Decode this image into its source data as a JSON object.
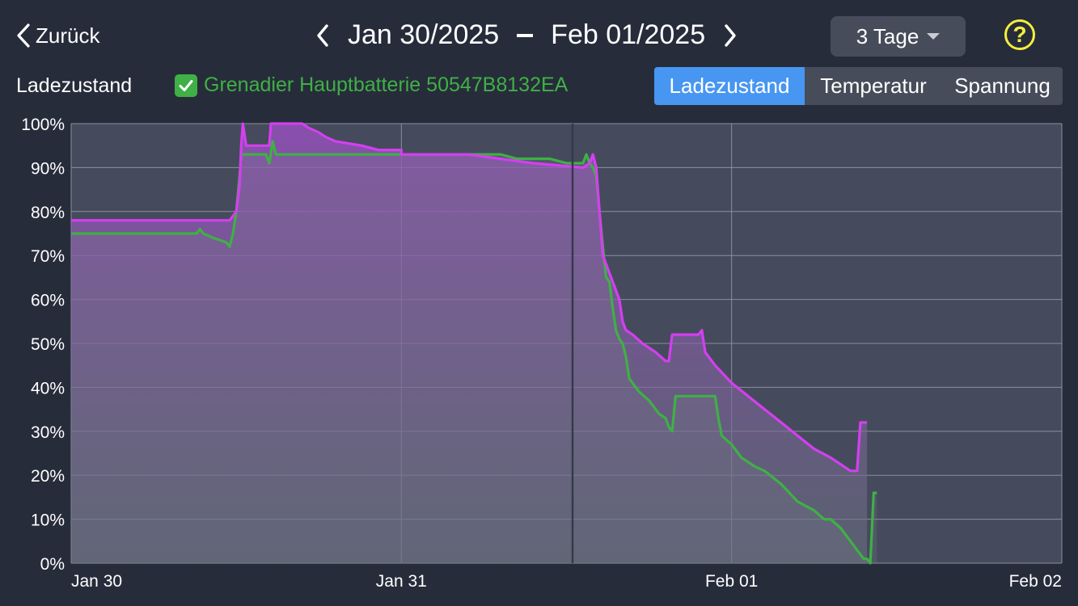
{
  "header": {
    "back_label": "Zurück",
    "date_from": "Jan 30/2025",
    "date_to": "Feb 01/2025",
    "range_label": "3 Tage",
    "help_label": "?"
  },
  "legend": {
    "section_label": "Ladezustand",
    "device_label": "Grenadier Hauptbatterie 50547B8132EA",
    "device_checked": true
  },
  "tabs": [
    {
      "label": "Ladezustand",
      "active": true
    },
    {
      "label": "Temperatur",
      "active": false
    },
    {
      "label": "Spannung",
      "active": false
    }
  ],
  "colors": {
    "background": "#272c3b",
    "magenta": "#d43ff0",
    "green": "#3fb045",
    "accent": "#4796f1",
    "help": "#f4ee3c"
  },
  "chart_data": {
    "type": "line",
    "x_unit": "days from Jan 30 00:00",
    "xlim": [
      0,
      3
    ],
    "ylim": [
      0,
      100
    ],
    "x_ticks": [
      {
        "x": 0,
        "label": "Jan 30"
      },
      {
        "x": 1,
        "label": "Jan 31"
      },
      {
        "x": 2,
        "label": "Feb 01"
      },
      {
        "x": 3,
        "label": "Feb 02"
      }
    ],
    "y_ticks": [
      0,
      10,
      20,
      30,
      40,
      50,
      60,
      70,
      80,
      90,
      100
    ],
    "y_tick_suffix": "%",
    "grid": true,
    "series": [
      {
        "color": "#d43ff0",
        "points": [
          [
            0,
            78
          ],
          [
            0.48,
            78
          ],
          [
            0.5,
            80
          ],
          [
            0.51,
            86
          ],
          [
            0.515,
            95
          ],
          [
            0.52,
            100
          ],
          [
            0.53,
            95
          ],
          [
            0.6,
            95
          ],
          [
            0.605,
            100
          ],
          [
            0.7,
            100
          ],
          [
            0.72,
            99
          ],
          [
            0.75,
            98
          ],
          [
            0.77,
            97
          ],
          [
            0.8,
            96
          ],
          [
            0.88,
            95
          ],
          [
            0.93,
            94
          ],
          [
            1.0,
            94
          ],
          [
            1.0,
            93
          ],
          [
            1.2,
            93
          ],
          [
            1.3,
            92
          ],
          [
            1.4,
            91
          ],
          [
            1.55,
            90
          ],
          [
            1.57,
            91
          ],
          [
            1.58,
            93
          ],
          [
            1.59,
            90
          ],
          [
            1.6,
            80
          ],
          [
            1.61,
            70
          ],
          [
            1.63,
            66
          ],
          [
            1.64,
            64
          ],
          [
            1.66,
            60
          ],
          [
            1.67,
            55
          ],
          [
            1.68,
            53
          ],
          [
            1.7,
            52
          ],
          [
            1.73,
            50
          ],
          [
            1.77,
            48
          ],
          [
            1.8,
            46
          ],
          [
            1.81,
            46
          ],
          [
            1.82,
            52
          ],
          [
            1.9,
            52
          ],
          [
            1.91,
            53
          ],
          [
            1.92,
            48
          ],
          [
            1.95,
            45
          ],
          [
            2.0,
            41
          ],
          [
            2.05,
            38
          ],
          [
            2.1,
            35
          ],
          [
            2.15,
            32
          ],
          [
            2.2,
            29
          ],
          [
            2.25,
            26
          ],
          [
            2.3,
            24
          ],
          [
            2.34,
            22
          ],
          [
            2.36,
            21
          ],
          [
            2.38,
            21
          ],
          [
            2.39,
            32
          ],
          [
            2.41,
            32
          ]
        ]
      },
      {
        "color": "#3fb045",
        "points": [
          [
            0,
            75
          ],
          [
            0.38,
            75
          ],
          [
            0.39,
            76
          ],
          [
            0.4,
            75
          ],
          [
            0.43,
            74
          ],
          [
            0.47,
            73
          ],
          [
            0.48,
            72
          ],
          [
            0.49,
            75
          ],
          [
            0.5,
            80
          ],
          [
            0.51,
            88
          ],
          [
            0.515,
            93
          ],
          [
            0.59,
            93
          ],
          [
            0.6,
            91
          ],
          [
            0.61,
            96
          ],
          [
            0.62,
            93
          ],
          [
            1.0,
            93
          ],
          [
            1.3,
            93
          ],
          [
            1.35,
            92
          ],
          [
            1.45,
            92
          ],
          [
            1.5,
            91
          ],
          [
            1.55,
            91
          ],
          [
            1.56,
            93
          ],
          [
            1.57,
            91
          ],
          [
            1.58,
            90
          ],
          [
            1.59,
            88
          ],
          [
            1.6,
            80
          ],
          [
            1.61,
            72
          ],
          [
            1.62,
            65
          ],
          [
            1.63,
            64
          ],
          [
            1.64,
            58
          ],
          [
            1.65,
            53
          ],
          [
            1.66,
            51
          ],
          [
            1.67,
            50
          ],
          [
            1.68,
            47
          ],
          [
            1.69,
            42
          ],
          [
            1.7,
            41
          ],
          [
            1.72,
            39
          ],
          [
            1.75,
            37
          ],
          [
            1.77,
            35
          ],
          [
            1.78,
            34
          ],
          [
            1.8,
            33
          ],
          [
            1.81,
            31
          ],
          [
            1.82,
            30
          ],
          [
            1.83,
            38
          ],
          [
            1.95,
            38
          ],
          [
            1.96,
            33
          ],
          [
            1.97,
            29
          ],
          [
            2.0,
            27
          ],
          [
            2.03,
            24
          ],
          [
            2.07,
            22
          ],
          [
            2.1,
            21
          ],
          [
            2.15,
            18
          ],
          [
            2.2,
            14
          ],
          [
            2.25,
            12
          ],
          [
            2.28,
            10
          ],
          [
            2.3,
            10
          ],
          [
            2.33,
            8
          ],
          [
            2.36,
            5
          ],
          [
            2.38,
            3
          ],
          [
            2.4,
            1
          ],
          [
            2.41,
            1
          ],
          [
            2.42,
            0
          ],
          [
            2.43,
            16
          ],
          [
            2.44,
            16
          ]
        ]
      }
    ]
  }
}
